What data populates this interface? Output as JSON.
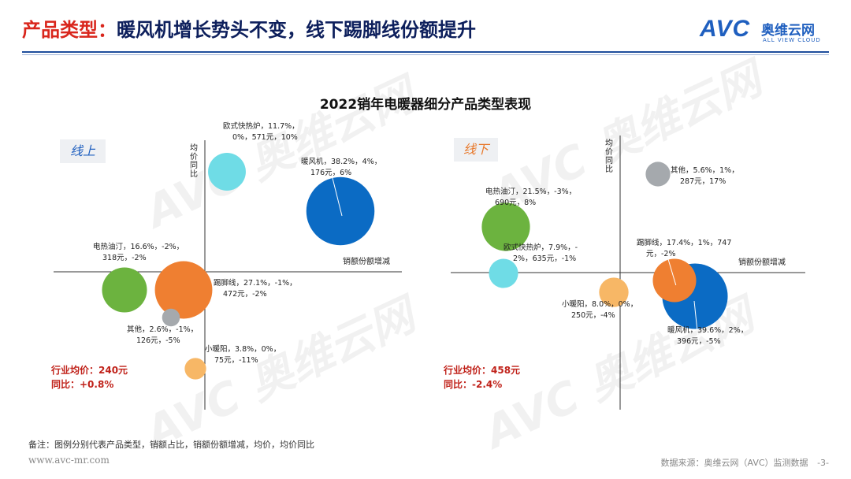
{
  "header": {
    "title_prefix": "产品类型：",
    "title_main": "暖风机增长势头不变，线下踢脚线份额提升"
  },
  "logo": {
    "brand": "AVC",
    "cn": "奥维云网",
    "en": "ALL VIEW CLOUD"
  },
  "watermark": {
    "text": "AVC 奥维云网"
  },
  "footer": {
    "note": "备注：图例分别代表产品类型，销额占比，销额份额增减，均价，均价同比",
    "website": "www.avc-mr.com",
    "source": "数据来源：奥维云网（AVC）监测数据",
    "page": "-3-"
  },
  "colors": {
    "title_dark": "#0d1f5c",
    "title_accent": "#d9261c",
    "rule": "#1f4e9c",
    "online_badge": "#1f5fbf",
    "offline_badge": "#e8782a",
    "avg_text": "#c0221a"
  },
  "chart_data": {
    "title": "2022销年电暖器细分产品类型表现",
    "type": "scatter",
    "panels": [
      {
        "name": "线上",
        "x_axis_label": "销额份额增减",
        "y_axis_label": "均价同比",
        "avg_price": "行业均价：240元",
        "yoy": "同比：+0.8%",
        "points": [
          {
            "label_line1": "欧式快热炉，11.7%，",
            "label_line2": "0%，571元，10%",
            "product": "欧式快热炉",
            "share": 11.7,
            "x": 0,
            "price": 571,
            "y": 10,
            "color": "#6fdce6"
          },
          {
            "label_line1": "暖风机，38.2%，4%，",
            "label_line2": "176元，6%",
            "product": "暖风机",
            "share": 38.2,
            "x": 4,
            "price": 176,
            "y": 6,
            "color": "#0b6bc4"
          },
          {
            "label_line1": "电热油汀，16.6%，-2%，",
            "label_line2": "318元，-2%",
            "product": "电热油汀",
            "share": 16.6,
            "x": -2,
            "price": 318,
            "y": -2,
            "color": "#6cb33f"
          },
          {
            "label_line1": "踢脚线，27.1%，-1%，",
            "label_line2": "472元，-2%",
            "product": "踢脚线",
            "share": 27.1,
            "x": -1,
            "price": 472,
            "y": -2,
            "color": "#ef7f31"
          },
          {
            "label_line1": "其他，2.6%，-1%，",
            "label_line2": "126元，-5%",
            "product": "其他",
            "share": 2.6,
            "x": -1,
            "price": 126,
            "y": -5,
            "color": "#a5a9ad"
          },
          {
            "label_line1": "小暖阳，3.8%，0%，",
            "label_line2": "75元，-11%",
            "product": "小暖阳",
            "share": 3.8,
            "x": 0,
            "price": 75,
            "y": -11,
            "color": "#f7b766"
          }
        ]
      },
      {
        "name": "线下",
        "x_axis_label": "销额份额增减",
        "y_axis_label": "均价同比",
        "avg_price": "行业均价：458元",
        "yoy": "同比：-2.4%",
        "points": [
          {
            "label_line1": "其他，5.6%，1%，",
            "label_line2": "287元，17%",
            "product": "其他",
            "share": 5.6,
            "x": 1,
            "price": 287,
            "y": 17,
            "color": "#a5a9ad"
          },
          {
            "label_line1": "电热油汀，21.5%，-3%，",
            "label_line2": "690元，8%",
            "product": "电热油汀",
            "share": 21.5,
            "x": -3,
            "price": 690,
            "y": 8,
            "color": "#6cb33f"
          },
          {
            "label_line1": "欧式快热炉，7.9%，-",
            "label_line2": "2%，635元，-1%",
            "product": "欧式快热炉",
            "share": 7.9,
            "x": -2,
            "price": 635,
            "y": -1,
            "color": "#6fdce6"
          },
          {
            "label_line1": "踢脚线，17.4%，1%，747",
            "label_line2": "元，-2%",
            "product": "踢脚线",
            "share": 17.4,
            "x": 1,
            "price": 747,
            "y": -2,
            "color": "#ef7f31"
          },
          {
            "label_line1": "小暖阳，8.0%，0%，",
            "label_line2": "250元，-4%",
            "product": "小暖阳",
            "share": 8.0,
            "x": 0,
            "price": 250,
            "y": -4,
            "color": "#f7b766"
          },
          {
            "label_line1": "暖风机，39.6%，2%，",
            "label_line2": "396元，-5%",
            "product": "暖风机",
            "share": 39.6,
            "x": 2,
            "price": 396,
            "y": -5,
            "color": "#0b6bc4"
          }
        ]
      }
    ]
  }
}
